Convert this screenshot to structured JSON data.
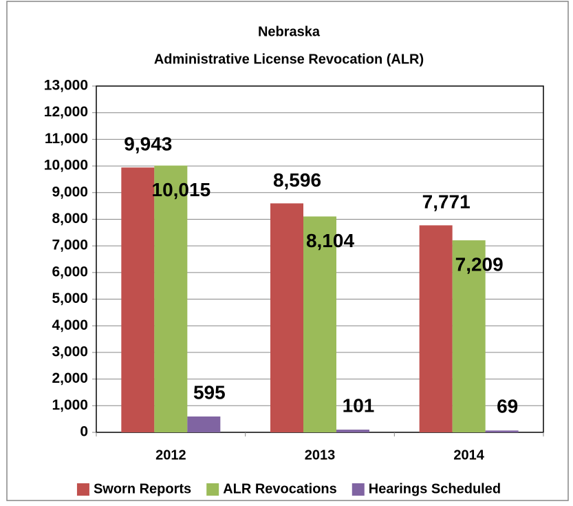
{
  "chart_data": {
    "type": "bar",
    "title": "Nebraska",
    "subtitle": "Administrative License Revocation (ALR)",
    "categories": [
      "2012",
      "2013",
      "2014"
    ],
    "series": [
      {
        "name": "Sworn Reports",
        "color": "#c0504d",
        "values": [
          9943,
          8596,
          7771
        ],
        "value_labels": [
          "9,943",
          "8,596",
          "7,771"
        ]
      },
      {
        "name": "ALR Revocations",
        "color": "#9bbb59",
        "values": [
          10015,
          8104,
          7209
        ],
        "value_labels": [
          "10,015",
          "8,104",
          "7,209"
        ]
      },
      {
        "name": "Hearings Scheduled",
        "color": "#8064a2",
        "values": [
          595,
          101,
          69
        ],
        "value_labels": [
          "595",
          "101",
          "69"
        ]
      }
    ],
    "ylim": [
      0,
      13000
    ],
    "yticks": [
      0,
      {
        "value": 1000,
        "label": "1,000"
      },
      {
        "value": 2000,
        "label": "2,000"
      },
      {
        "value": 3000,
        "label": "3,000"
      },
      {
        "value": 4000,
        "label": "4,000"
      },
      {
        "value": 5000,
        "label": "5,000"
      },
      {
        "value": 6000,
        "label": "6,000"
      },
      {
        "value": 7000,
        "label": "7,000"
      },
      {
        "value": 8000,
        "label": "8,000"
      },
      {
        "value": 9000,
        "label": "9,000"
      },
      {
        "value": 10000,
        "label": "10,000"
      },
      {
        "value": 11000,
        "label": "11,000"
      },
      {
        "value": 12000,
        "label": "12,000"
      },
      {
        "value": 13000,
        "label": "13,000"
      }
    ],
    "grid": true,
    "legend": "bottom"
  }
}
